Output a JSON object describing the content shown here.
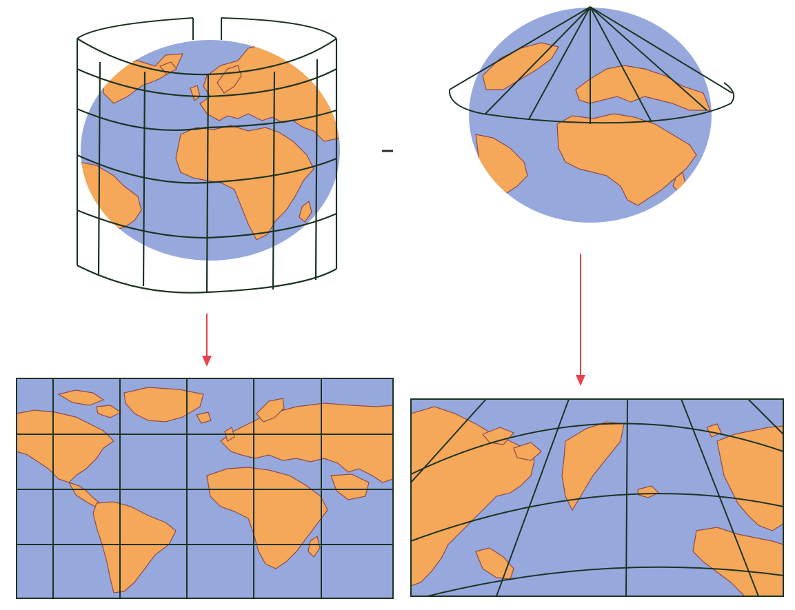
{
  "colors": {
    "ocean": "#97a8dd",
    "land": "#f5a75a",
    "land_outline": "#8a4a4a",
    "grid": "#1c3322",
    "arrow": "#e8434b",
    "background": "#ffffff"
  },
  "diagrams": [
    {
      "name": "cylindrical-projection",
      "illustration": "globe-in-cylinder",
      "result": "rectangular-grid-map"
    },
    {
      "name": "conic-projection",
      "illustration": "globe-under-cone",
      "result": "fan-grid-map"
    }
  ],
  "arrows": [
    {
      "from": "globe-in-cylinder",
      "to": "rectangular-grid-map"
    },
    {
      "from": "globe-under-cone",
      "to": "fan-grid-map"
    }
  ]
}
